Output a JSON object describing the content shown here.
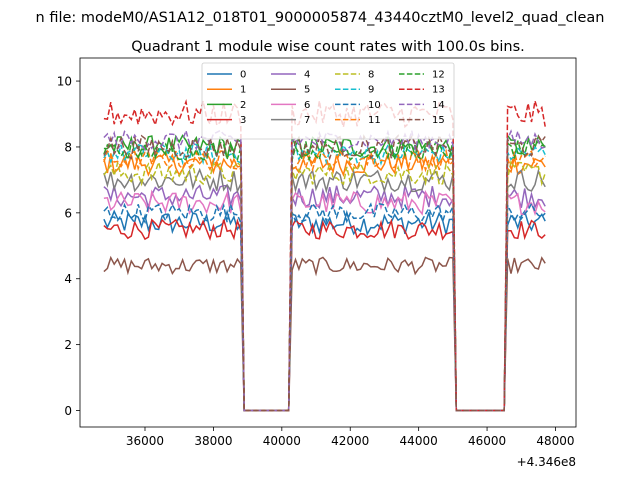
{
  "chart_data": {
    "type": "line",
    "suptitle": "n file: modeM0/AS1A12_018T01_9000005874_43440cztM0_level2_quad_clean",
    "title": "Quadrant 1 module wise count rates with 100.0s bins.",
    "xlabel": "",
    "ylabel": "",
    "x_offset_label": "+4.346e8",
    "xlim": [
      34100,
      48600
    ],
    "ylim": [
      -0.5,
      10.7
    ],
    "x_ticks": [
      36000,
      38000,
      40000,
      42000,
      44000,
      46000,
      48000
    ],
    "x_tick_labels": [
      "36000",
      "38000",
      "40000",
      "42000",
      "44000",
      "46000",
      "48000"
    ],
    "y_ticks": [
      0,
      2,
      4,
      6,
      8,
      10
    ],
    "y_tick_labels": [
      "0",
      "2",
      "4",
      "6",
      "8",
      "10"
    ],
    "legend_location": "upper-center",
    "legend_columns": 4,
    "bin_seconds": 100,
    "time_segments": [
      {
        "start": 34800,
        "end": 38800,
        "label": "on"
      },
      {
        "start": 38900,
        "end": 40200,
        "label": "off"
      },
      {
        "start": 40300,
        "end": 45000,
        "label": "on"
      },
      {
        "start": 45100,
        "end": 46500,
        "label": "off"
      },
      {
        "start": 46600,
        "end": 47700,
        "label": "on"
      }
    ],
    "series": [
      {
        "name": "0",
        "mean": 5.7,
        "noise": 0.35,
        "color": "#1f77b4",
        "style": "solid"
      },
      {
        "name": "1",
        "mean": 7.5,
        "noise": 0.35,
        "color": "#ff7f0e",
        "style": "solid"
      },
      {
        "name": "2",
        "mean": 8.0,
        "noise": 0.35,
        "color": "#2ca02c",
        "style": "solid"
      },
      {
        "name": "3",
        "mean": 5.5,
        "noise": 0.3,
        "color": "#d62728",
        "style": "solid"
      },
      {
        "name": "4",
        "mean": 6.5,
        "noise": 0.35,
        "color": "#9467bd",
        "style": "solid"
      },
      {
        "name": "5",
        "mean": 4.4,
        "noise": 0.25,
        "color": "#8c564b",
        "style": "solid"
      },
      {
        "name": "6",
        "mean": 6.3,
        "noise": 0.35,
        "color": "#e377c2",
        "style": "solid"
      },
      {
        "name": "7",
        "mean": 7.0,
        "noise": 0.35,
        "color": "#7f7f7f",
        "style": "solid"
      },
      {
        "name": "8",
        "mean": 7.2,
        "noise": 0.35,
        "color": "#bcbd22",
        "style": "dashed"
      },
      {
        "name": "9",
        "mean": 7.8,
        "noise": 0.3,
        "color": "#17becf",
        "style": "dashed"
      },
      {
        "name": "10",
        "mean": 6.0,
        "noise": 0.3,
        "color": "#1f77b4",
        "style": "dashed"
      },
      {
        "name": "11",
        "mean": 7.6,
        "noise": 0.3,
        "color": "#ff7f0e",
        "style": "dashed"
      },
      {
        "name": "12",
        "mean": 7.9,
        "noise": 0.3,
        "color": "#2ca02c",
        "style": "dashed"
      },
      {
        "name": "13",
        "mean": 9.0,
        "noise": 0.4,
        "color": "#d62728",
        "style": "dashed"
      },
      {
        "name": "14",
        "mean": 8.2,
        "noise": 0.3,
        "color": "#9467bd",
        "style": "dashed"
      },
      {
        "name": "15",
        "mean": 8.0,
        "noise": 0.35,
        "color": "#8c564b",
        "style": "dashed"
      }
    ]
  }
}
